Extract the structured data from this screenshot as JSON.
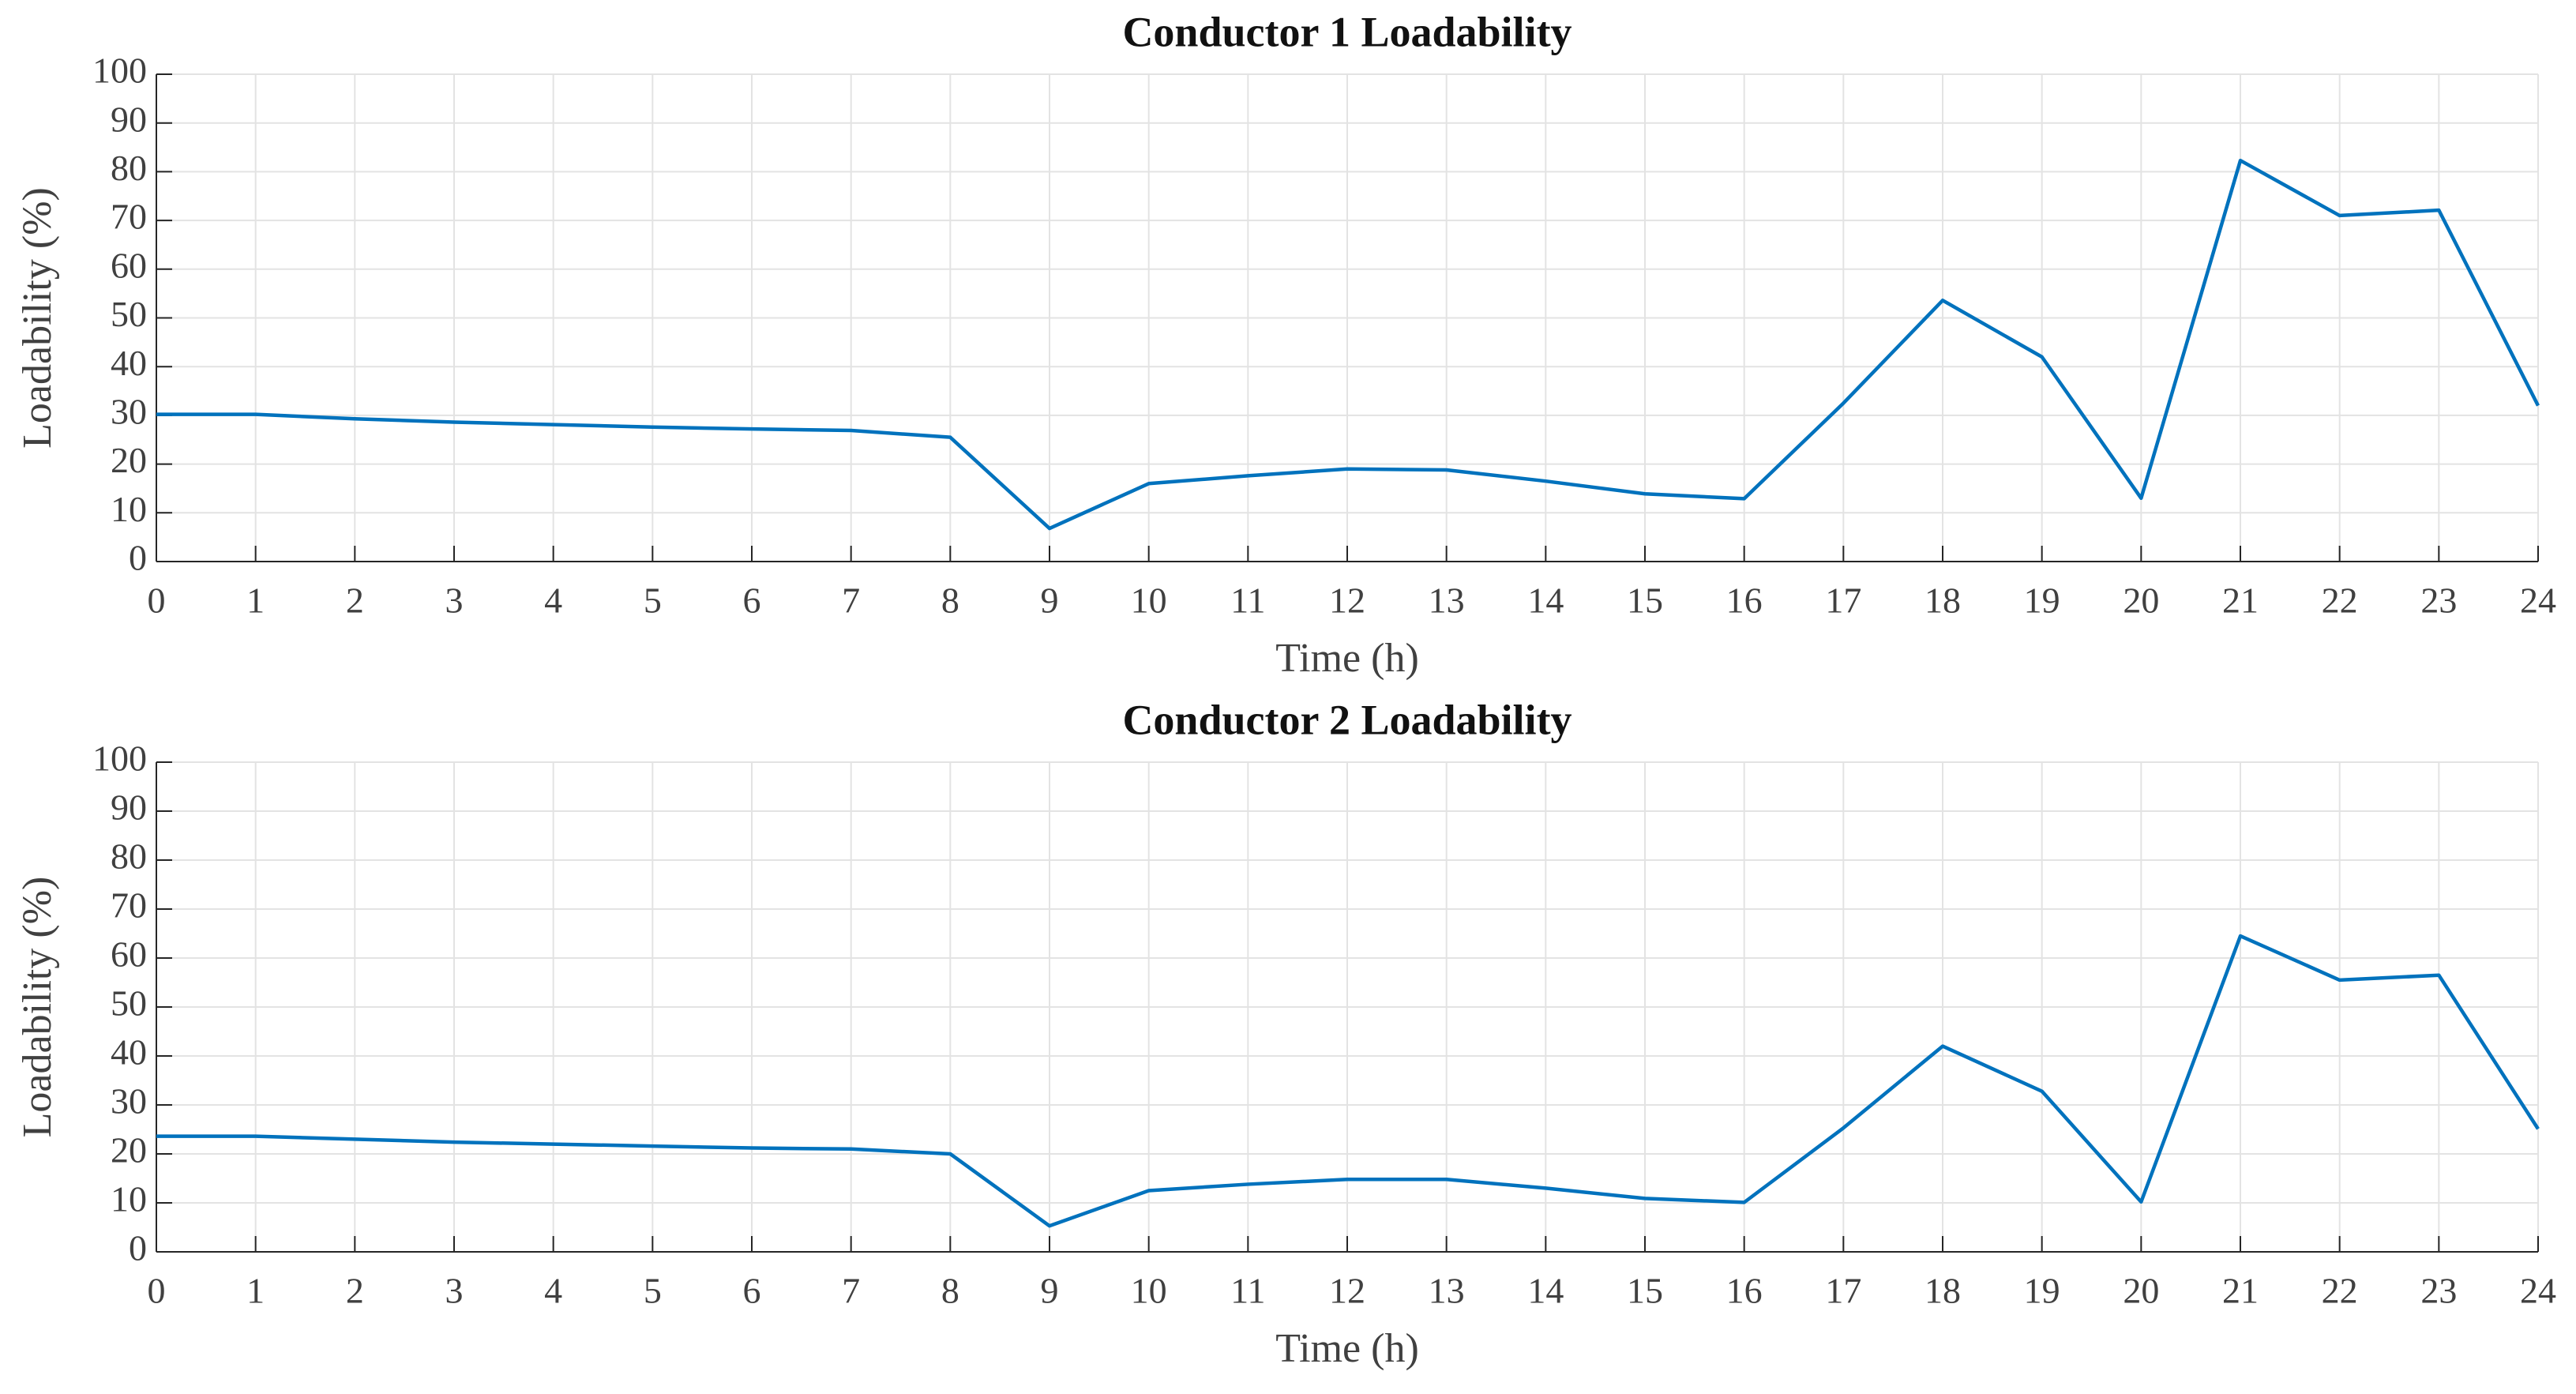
{
  "chart_data": [
    {
      "type": "line",
      "title": "Conductor 1 Loadability",
      "xlabel": "Time  (h)",
      "ylabel": "Loadability  (%)",
      "x": [
        0,
        1,
        2,
        3,
        4,
        5,
        6,
        7,
        8,
        9,
        10,
        11,
        12,
        13,
        14,
        15,
        16,
        17,
        18,
        19,
        20,
        21,
        22,
        23,
        24
      ],
      "series": [
        {
          "name": "Conductor 1",
          "color": "#0072bd",
          "values": [
            30.2,
            30.2,
            29.3,
            28.6,
            28.1,
            27.6,
            27.2,
            26.9,
            25.5,
            6.8,
            16,
            17.6,
            19,
            18.8,
            16.5,
            13.9,
            12.9,
            32.5,
            53.6,
            42,
            13,
            82.3,
            71,
            72.1,
            32
          ]
        }
      ],
      "xlim": [
        0,
        24
      ],
      "xticks": [
        0,
        1,
        2,
        3,
        4,
        5,
        6,
        7,
        8,
        9,
        10,
        11,
        12,
        13,
        14,
        15,
        16,
        17,
        18,
        19,
        20,
        21,
        22,
        23,
        24
      ],
      "ylim": [
        0,
        100
      ],
      "yticks": [
        0,
        10,
        20,
        30,
        40,
        50,
        60,
        70,
        80,
        90,
        100
      ],
      "grid": true
    },
    {
      "type": "line",
      "title": "Conductor 2 Loadability",
      "xlabel": "Time  (h)",
      "ylabel": "Loadability  (%)",
      "x": [
        0,
        1,
        2,
        3,
        4,
        5,
        6,
        7,
        8,
        9,
        10,
        11,
        12,
        13,
        14,
        15,
        16,
        17,
        18,
        19,
        20,
        21,
        22,
        23,
        24
      ],
      "series": [
        {
          "name": "Conductor 2",
          "color": "#0072bd",
          "values": [
            23.6,
            23.6,
            23,
            22.4,
            22,
            21.6,
            21.2,
            21,
            20,
            5.3,
            12.5,
            13.8,
            14.8,
            14.8,
            13,
            10.9,
            10.1,
            25.3,
            42,
            32.8,
            10.2,
            64.5,
            55.5,
            56.5,
            25.1
          ]
        }
      ],
      "xlim": [
        0,
        24
      ],
      "xticks": [
        0,
        1,
        2,
        3,
        4,
        5,
        6,
        7,
        8,
        9,
        10,
        11,
        12,
        13,
        14,
        15,
        16,
        17,
        18,
        19,
        20,
        21,
        22,
        23,
        24
      ],
      "ylim": [
        0,
        100
      ],
      "yticks": [
        0,
        10,
        20,
        30,
        40,
        50,
        60,
        70,
        80,
        90,
        100
      ],
      "grid": true
    }
  ]
}
